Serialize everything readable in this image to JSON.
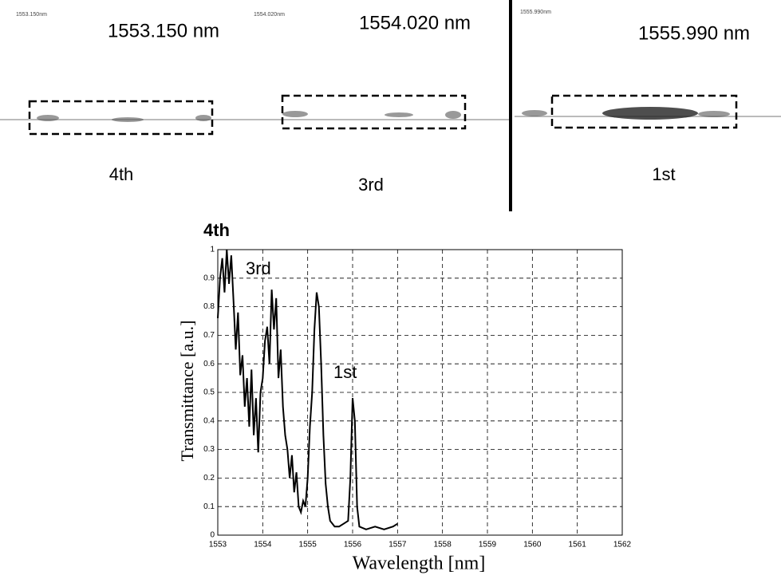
{
  "panels": [
    {
      "scale_label": "1553.150nm",
      "wavelength": "1553.150 nm",
      "order": "4th"
    },
    {
      "scale_label": "1554.020nm",
      "wavelength": "1554.020 nm",
      "order": "3rd"
    },
    {
      "scale_label": "1555.990nm",
      "wavelength": "1555.990 nm",
      "order": "1st"
    }
  ],
  "chart_data": {
    "type": "line",
    "x_label": "Wavelength [nm]",
    "y_label": "Transmittance [a.u.]",
    "annotations": [
      "4th",
      "3rd",
      "1st"
    ],
    "x": [
      1553.0,
      1553.05,
      1553.1,
      1553.15,
      1553.2,
      1553.25,
      1553.3,
      1553.35,
      1553.4,
      1553.45,
      1553.5,
      1553.55,
      1553.6,
      1553.65,
      1553.7,
      1553.75,
      1553.8,
      1553.85,
      1553.9,
      1553.95,
      1554.0,
      1554.05,
      1554.1,
      1554.15,
      1554.2,
      1554.25,
      1554.3,
      1554.35,
      1554.4,
      1554.45,
      1554.5,
      1554.55,
      1554.6,
      1554.65,
      1554.7,
      1554.75,
      1554.8,
      1554.85,
      1554.9,
      1554.95,
      1555.0,
      1555.05,
      1555.1,
      1555.15,
      1555.2,
      1555.25,
      1555.3,
      1555.35,
      1555.4,
      1555.45,
      1555.5,
      1555.55,
      1555.6,
      1555.7,
      1555.8,
      1555.9,
      1555.95,
      1556.0,
      1556.05,
      1556.1,
      1556.15,
      1556.3,
      1556.5,
      1556.7,
      1556.9,
      1557.0
    ],
    "series": [
      {
        "color": "#000000",
        "values": [
          0.76,
          0.9,
          0.97,
          0.85,
          1.0,
          0.88,
          0.98,
          0.82,
          0.65,
          0.78,
          0.56,
          0.63,
          0.45,
          0.55,
          0.38,
          0.58,
          0.35,
          0.48,
          0.29,
          0.5,
          0.55,
          0.68,
          0.73,
          0.6,
          0.86,
          0.72,
          0.83,
          0.55,
          0.65,
          0.45,
          0.35,
          0.3,
          0.2,
          0.28,
          0.15,
          0.22,
          0.1,
          0.08,
          0.12,
          0.1,
          0.2,
          0.38,
          0.5,
          0.72,
          0.85,
          0.8,
          0.6,
          0.35,
          0.18,
          0.1,
          0.05,
          0.04,
          0.03,
          0.03,
          0.04,
          0.05,
          0.2,
          0.48,
          0.4,
          0.1,
          0.03,
          0.02,
          0.03,
          0.02,
          0.03,
          0.04
        ]
      }
    ],
    "xlim": [
      1553,
      1562
    ],
    "ylim": [
      0,
      1
    ],
    "xticks": [
      1553,
      1554,
      1555,
      1556,
      1557,
      1558,
      1559,
      1560,
      1561,
      1562
    ],
    "yticks": [
      0,
      0.1,
      0.2,
      0.3,
      0.4,
      0.5,
      0.6,
      0.7,
      0.8,
      0.9,
      1
    ],
    "grid": true
  }
}
